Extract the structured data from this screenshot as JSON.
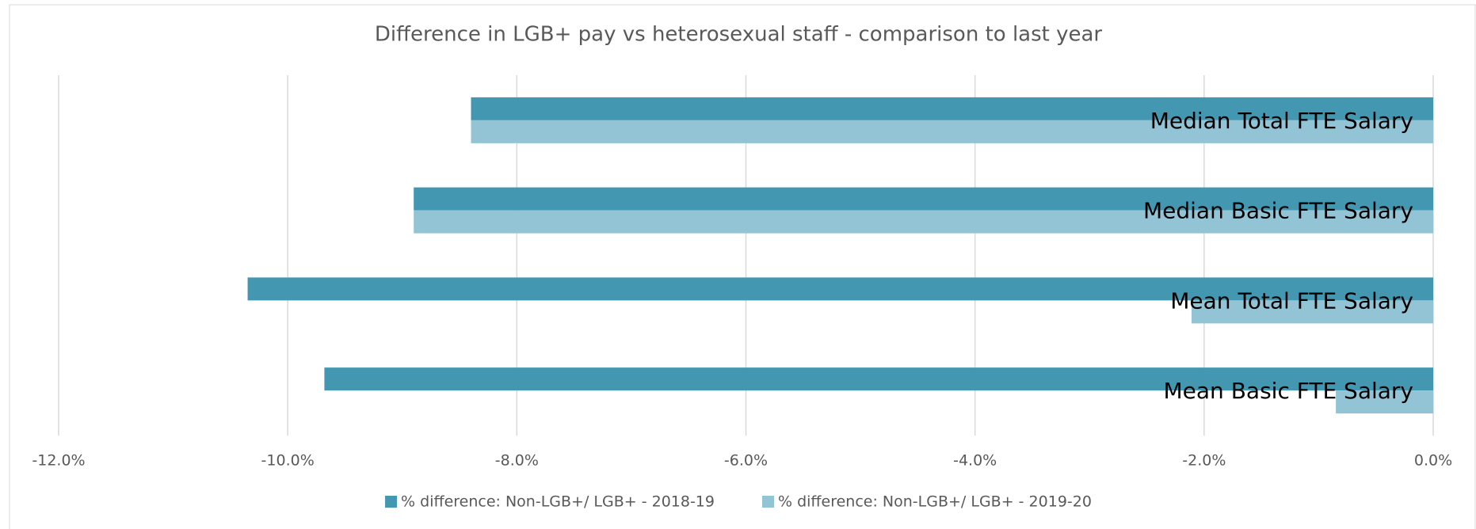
{
  "chart_data": {
    "type": "bar",
    "orientation": "horizontal",
    "title": "Difference in LGB+ pay vs heterosexual staff - comparison to last year",
    "categories": [
      "Median Total FTE Salary",
      "Median Basic FTE Salary",
      "Mean Total FTE Salary",
      "Mean Basic FTE Salary"
    ],
    "series": [
      {
        "name": "% difference: Non-LGB+/ LGB+ - 2018-19",
        "color": "#4397b0",
        "values": [
          -8.4,
          -8.9,
          -10.35,
          -9.68
        ]
      },
      {
        "name": "% difference: Non-LGB+/ LGB+ - 2019-20",
        "color": "#93c4d6",
        "values": [
          -8.4,
          -8.9,
          -2.11,
          -0.85
        ]
      }
    ],
    "xlim": [
      -12,
      0
    ],
    "xticks": [
      {
        "value": -12,
        "label": "-12.0%"
      },
      {
        "value": -10,
        "label": "-10.0%"
      },
      {
        "value": -8,
        "label": "-8.0%"
      },
      {
        "value": -6,
        "label": "-6.0%"
      },
      {
        "value": -4,
        "label": "-4.0%"
      },
      {
        "value": -2,
        "label": "-2.0%"
      },
      {
        "value": 0,
        "label": "0.0%"
      }
    ],
    "grid": true,
    "legend": "bottom"
  }
}
